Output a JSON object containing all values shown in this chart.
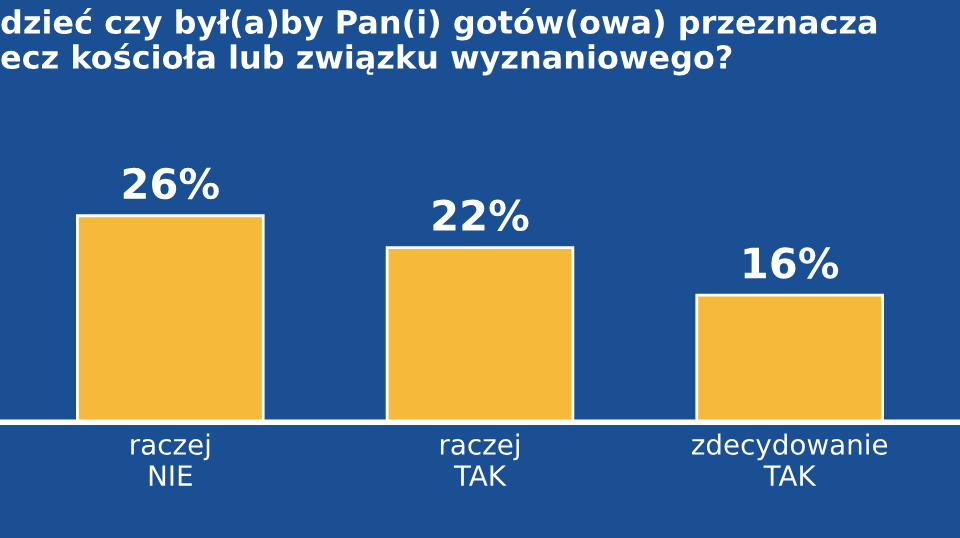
{
  "chart_data": {
    "type": "bar",
    "title": "dzieć czy był(a)by Pan(i) gotów(owa) przeznacza\necz kościoła lub związku wyznaniowego?",
    "categories": [
      "raczej\nNIE",
      "raczej\nTAK",
      "zdecydowanie\nTAK"
    ],
    "values": [
      26,
      22,
      16
    ],
    "value_labels": [
      "26%",
      "22%",
      "16%"
    ],
    "color": "#f7b93a"
  }
}
